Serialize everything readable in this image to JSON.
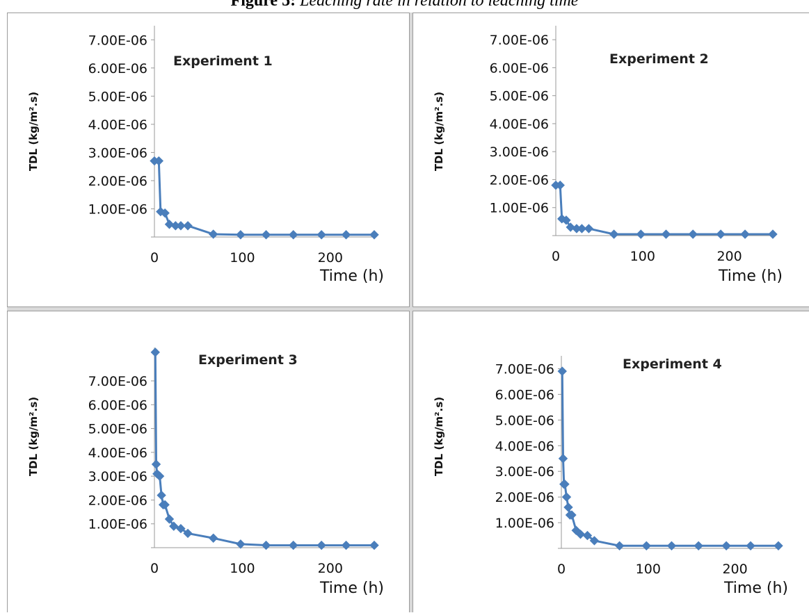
{
  "figure": {
    "label": "Figure 5:",
    "caption": "Leaching rate in relation to leaching time"
  },
  "style": {
    "series_color": "#4a7ebb",
    "axis_color": "#9a9a9a"
  },
  "chart_data": [
    {
      "type": "line",
      "title": "Experiment 1",
      "xlabel": "Time (h)",
      "ylabel": "TDL (kg/m².s)",
      "xlim": [
        0,
        250
      ],
      "ylim": [
        0,
        7.5e-06
      ],
      "x_ticks": [
        0,
        100,
        200
      ],
      "y_ticks": [
        "1.00E-06",
        "2.00E-06",
        "3.00E-06",
        "4.00E-06",
        "5.00E-06",
        "6.00E-06",
        "7.00E-06"
      ],
      "series": [
        {
          "x": [
            0,
            5,
            7,
            12,
            17,
            24,
            30,
            38,
            67,
            98,
            127,
            158,
            190,
            218,
            250
          ],
          "y": [
            2.7e-06,
            2.7e-06,
            9e-07,
            8.5e-07,
            4.5e-07,
            4e-07,
            4e-07,
            4e-07,
            1e-07,
            8e-08,
            8e-08,
            8e-08,
            8e-08,
            8e-08,
            8e-08
          ]
        }
      ]
    },
    {
      "type": "line",
      "title": "Experiment 2",
      "xlabel": "Time (h)",
      "ylabel": "TDL (kg/m².s)",
      "xlim": [
        0,
        250
      ],
      "ylim": [
        0,
        7.5e-06
      ],
      "x_ticks": [
        0,
        100,
        200
      ],
      "y_ticks": [
        "1.00E-06",
        "2.00E-06",
        "3.00E-06",
        "4.00E-06",
        "5.00E-06",
        "6.00E-06",
        "7.00E-06"
      ],
      "series": [
        {
          "x": [
            0,
            5,
            7,
            12,
            17,
            24,
            30,
            38,
            67,
            98,
            127,
            158,
            190,
            218,
            250
          ],
          "y": [
            1.8e-06,
            1.8e-06,
            6e-07,
            5.5e-07,
            3e-07,
            2.5e-07,
            2.5e-07,
            2.5e-07,
            5e-08,
            5e-08,
            5e-08,
            5e-08,
            5e-08,
            5e-08,
            5e-08
          ]
        }
      ]
    },
    {
      "type": "line",
      "title": "Experiment 3",
      "xlabel": "Time (h)",
      "ylabel": "TDL (kg/m².s)",
      "xlim": [
        0,
        250
      ],
      "ylim": [
        0,
        8.4e-06
      ],
      "x_ticks": [
        0,
        100,
        200
      ],
      "y_ticks": [
        "1.00E-06",
        "2.00E-06",
        "3.00E-06",
        "4.00E-06",
        "5.00E-06",
        "6.00E-06",
        "7.00E-06"
      ],
      "series": [
        {
          "x": [
            1,
            2,
            3,
            6,
            8,
            10,
            12,
            17,
            22,
            30,
            38,
            67,
            98,
            127,
            158,
            190,
            218,
            250
          ],
          "y": [
            8.2e-06,
            3.5e-06,
            3.1e-06,
            3e-06,
            2.2e-06,
            1.8e-06,
            1.8e-06,
            1.2e-06,
            9e-07,
            8e-07,
            6e-07,
            4e-07,
            1.5e-07,
            1e-07,
            1e-07,
            1e-07,
            1e-07,
            1e-07
          ]
        }
      ]
    },
    {
      "type": "line",
      "title": "Experiment 4",
      "xlabel": "Time (h)",
      "ylabel": "TDL (kg/m².s)",
      "xlim": [
        0,
        250
      ],
      "ylim": [
        0,
        7.5e-06
      ],
      "x_ticks": [
        0,
        100,
        200
      ],
      "y_ticks": [
        "1.00E-06",
        "2.00E-06",
        "3.00E-06",
        "4.00E-06",
        "5.00E-06",
        "6.00E-06",
        "7.00E-06"
      ],
      "series": [
        {
          "x": [
            1,
            2,
            3,
            4,
            6,
            8,
            10,
            12,
            17,
            22,
            30,
            38,
            67,
            98,
            127,
            158,
            190,
            218,
            250
          ],
          "y": [
            6.9e-06,
            3.5e-06,
            2.5e-06,
            2.5e-06,
            2e-06,
            1.6e-06,
            1.3e-06,
            1.3e-06,
            7e-07,
            5.5e-07,
            5e-07,
            3e-07,
            1e-07,
            1e-07,
            1e-07,
            1e-07,
            1e-07,
            1e-07,
            1e-07
          ]
        }
      ]
    }
  ]
}
